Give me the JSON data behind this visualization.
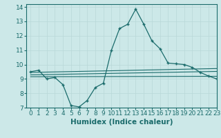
{
  "title": "",
  "xlabel": "Humidex (Indice chaleur)",
  "ylabel": "",
  "bg_color": "#cce8e8",
  "line_color": "#1a6b6b",
  "xlim": [
    -0.5,
    23
  ],
  "ylim": [
    7,
    14.2
  ],
  "yticks": [
    7,
    8,
    9,
    10,
    11,
    12,
    13,
    14
  ],
  "xticks": [
    0,
    1,
    2,
    3,
    4,
    5,
    6,
    7,
    8,
    9,
    10,
    11,
    12,
    13,
    14,
    15,
    16,
    17,
    18,
    19,
    20,
    21,
    22,
    23
  ],
  "main_x": [
    0,
    1,
    2,
    3,
    4,
    5,
    6,
    7,
    8,
    9,
    10,
    11,
    12,
    13,
    14,
    15,
    16,
    17,
    18,
    19,
    20,
    21,
    22,
    23
  ],
  "main_y": [
    9.5,
    9.6,
    9.0,
    9.1,
    8.6,
    7.15,
    7.05,
    7.5,
    8.4,
    8.7,
    11.0,
    12.5,
    12.8,
    13.85,
    12.8,
    11.65,
    11.1,
    10.1,
    10.05,
    10.0,
    9.8,
    9.45,
    9.2,
    9.0
  ],
  "line1_x": [
    0,
    23
  ],
  "line1_y": [
    9.45,
    9.72
  ],
  "line2_x": [
    0,
    23
  ],
  "line2_y": [
    9.28,
    9.52
  ],
  "line3_x": [
    0,
    23
  ],
  "line3_y": [
    9.15,
    9.18
  ],
  "grid_color": "#b8d8d8",
  "tick_fontsize": 6.5,
  "label_fontsize": 7.5
}
